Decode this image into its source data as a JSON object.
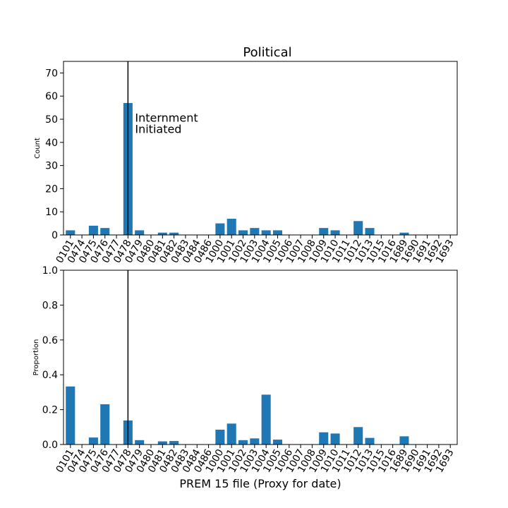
{
  "chart_data": [
    {
      "type": "bar",
      "title": "Political",
      "xlabel": "",
      "ylabel": "Count",
      "ylim": [
        0,
        75
      ],
      "yticks": [
        "0",
        "10",
        "20",
        "30",
        "40",
        "50",
        "60",
        "70"
      ],
      "categories": [
        "0101",
        "0474",
        "0475",
        "0476",
        "0477",
        "0478",
        "0479",
        "0480",
        "0481",
        "0482",
        "0483",
        "0484",
        "0486",
        "1000",
        "1001",
        "1002",
        "1003",
        "1004",
        "1005",
        "1006",
        "1007",
        "1008",
        "1009",
        "1010",
        "1011",
        "1012",
        "1013",
        "1015",
        "1016",
        "1689",
        "1690",
        "1691",
        "1692",
        "1693"
      ],
      "values": [
        2,
        0,
        4,
        3,
        0,
        57,
        2,
        0,
        1,
        1,
        0,
        0,
        0,
        5,
        7,
        2,
        3,
        2,
        2,
        0,
        0,
        0,
        3,
        2,
        0,
        6,
        3,
        0,
        0,
        1,
        0,
        0,
        0,
        0
      ],
      "bar_color": "#1f77b4",
      "vline_category": "0478",
      "annotation": [
        "Internment",
        "Initiated"
      ],
      "grid": false
    },
    {
      "type": "bar",
      "title": "",
      "xlabel": "PREM 15 file (Proxy for date)",
      "ylabel": "Proportion",
      "ylim": [
        0,
        1.0
      ],
      "yticks": [
        "0.0",
        "0.2",
        "0.4",
        "0.6",
        "0.8",
        "1.0"
      ],
      "categories": [
        "0101",
        "0474",
        "0475",
        "0476",
        "0477",
        "0478",
        "0479",
        "0480",
        "0481",
        "0482",
        "0483",
        "0484",
        "0486",
        "1000",
        "1001",
        "1002",
        "1003",
        "1004",
        "1005",
        "1006",
        "1007",
        "1008",
        "1009",
        "1010",
        "1011",
        "1012",
        "1013",
        "1015",
        "1016",
        "1689",
        "1690",
        "1691",
        "1692",
        "1693"
      ],
      "values": [
        0.333,
        0,
        0.04,
        0.231,
        0,
        0.138,
        0.025,
        0,
        0.018,
        0.02,
        0,
        0,
        0,
        0.085,
        0.12,
        0.025,
        0.035,
        0.286,
        0.028,
        0,
        0,
        0,
        0.07,
        0.063,
        0,
        0.1,
        0.038,
        0,
        0,
        0.047,
        0,
        0,
        0,
        0
      ],
      "bar_color": "#1f77b4",
      "vline_category": "0478",
      "grid": false
    }
  ]
}
